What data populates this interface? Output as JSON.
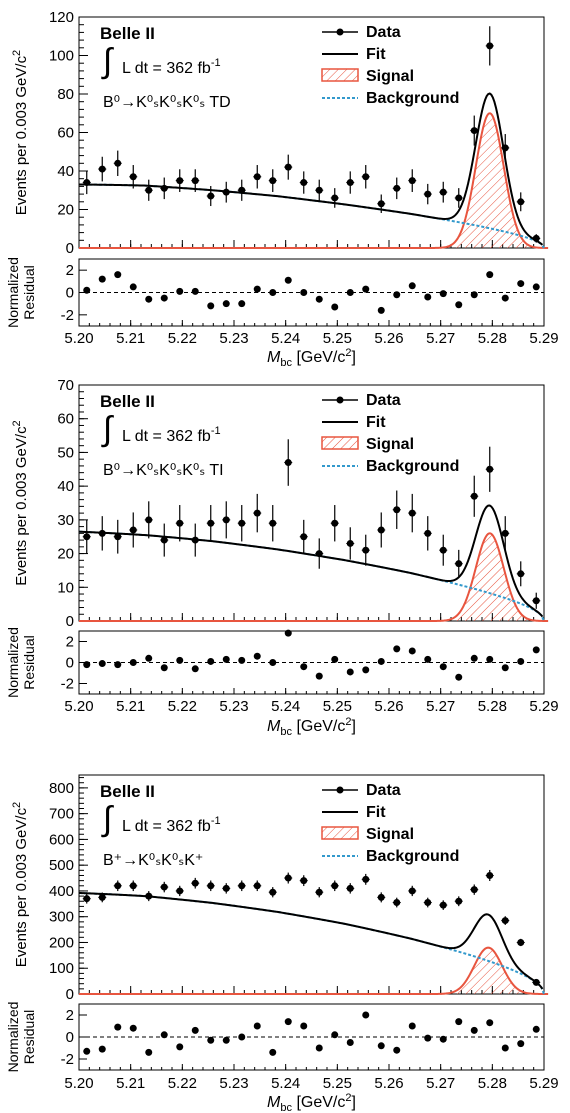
{
  "style": {
    "data": "#000000",
    "fit": "#000000",
    "signal": "#e8553f",
    "background": "#3399cc"
  },
  "legend": {
    "data": "Data",
    "fit": "Fit",
    "signal": "Signal",
    "background": "Background"
  },
  "experiment": "Belle II",
  "lumi_text": "L dt = 362 fb",
  "lumi_sup": "-1",
  "y_label": "Events per 0.003 GeV/c",
  "y_label_sup": "2",
  "res_label_1": "Normalized",
  "res_label_2": "Residual",
  "x_label_main": "M",
  "x_label_sub": "bc",
  "x_label_unit": " [GeV/c",
  "x_label_unit_sup": "2",
  "x_label_close": "]",
  "chart_data": [
    {
      "type": "scatter",
      "channel": "B⁰→K⁰ₛK⁰ₛK⁰ₛ TD",
      "xlim": [
        5.2,
        5.29
      ],
      "ylim": [
        0,
        120
      ],
      "yticks": [
        0,
        20,
        40,
        60,
        80,
        100,
        120
      ],
      "xticks": [
        5.2,
        5.21,
        5.22,
        5.23,
        5.24,
        5.25,
        5.26,
        5.27,
        5.28,
        5.29
      ],
      "data_x": [
        5.2015,
        5.2045,
        5.2075,
        5.2105,
        5.2135,
        5.2165,
        5.2195,
        5.2225,
        5.2255,
        5.2285,
        5.2315,
        5.2345,
        5.2375,
        5.2405,
        5.2435,
        5.2465,
        5.2495,
        5.2525,
        5.2555,
        5.2585,
        5.2615,
        5.2645,
        5.2675,
        5.2705,
        5.2735,
        5.2765,
        5.2795,
        5.2825,
        5.2855,
        5.2885
      ],
      "data_y": [
        34,
        41,
        44,
        37,
        30,
        31,
        35,
        35,
        27,
        29,
        30,
        37,
        35,
        42,
        34,
        30,
        26,
        34,
        37,
        23,
        31,
        35,
        28,
        29,
        26,
        61,
        105,
        52,
        24,
        5
      ],
      "data_err": [
        6,
        6.4,
        6.6,
        6.1,
        5.5,
        5.6,
        5.9,
        5.9,
        5.2,
        5.4,
        5.5,
        6.1,
        5.9,
        6.5,
        5.8,
        5.5,
        5.1,
        5.8,
        6.1,
        4.8,
        5.6,
        5.9,
        5.3,
        5.4,
        5.1,
        7.8,
        10.2,
        7.2,
        4.9,
        2.2
      ],
      "bkg_poly": [
        33,
        35,
        35.5,
        35.5,
        34.5,
        33,
        30.5,
        27
      ],
      "signal_peak": 70,
      "mean": 5.2795,
      "sigma": 0.0027,
      "residual_ylim": [
        -3,
        3
      ],
      "residual_yticks": [
        -2,
        0,
        2
      ],
      "residuals": [
        0.2,
        1.2,
        1.6,
        0.5,
        -0.6,
        -0.5,
        0.1,
        0.1,
        -1.2,
        -1,
        -1,
        0.3,
        0,
        1.1,
        0,
        -0.6,
        -1.3,
        0,
        0.3,
        -1.6,
        -0.2,
        0.6,
        -0.4,
        -0.1,
        -1.1,
        -0.2,
        1.6,
        -0.5,
        0.8,
        0.5
      ]
    },
    {
      "type": "scatter",
      "channel": "B⁰→K⁰ₛK⁰ₛK⁰ₛ TI",
      "xlim": [
        5.2,
        5.29
      ],
      "ylim": [
        0,
        70
      ],
      "yticks": [
        0,
        10,
        20,
        30,
        40,
        50,
        60,
        70
      ],
      "xticks": [
        5.2,
        5.21,
        5.22,
        5.23,
        5.24,
        5.25,
        5.26,
        5.27,
        5.28,
        5.29
      ],
      "data_x": [
        5.2015,
        5.2045,
        5.2075,
        5.2105,
        5.2135,
        5.2165,
        5.2195,
        5.2225,
        5.2255,
        5.2285,
        5.2315,
        5.2345,
        5.2375,
        5.2405,
        5.2435,
        5.2465,
        5.2495,
        5.2525,
        5.2555,
        5.2585,
        5.2615,
        5.2645,
        5.2675,
        5.2705,
        5.2735,
        5.2765,
        5.2795,
        5.2825,
        5.2855,
        5.2885
      ],
      "data_y": [
        25,
        26,
        25,
        27,
        30,
        24,
        29,
        24,
        29,
        30,
        29,
        32,
        29,
        47,
        25,
        20,
        29,
        23,
        21,
        27,
        33,
        32,
        26,
        21,
        17,
        37,
        45,
        26,
        14,
        6
      ],
      "data_err": [
        5,
        5.1,
        5,
        5.2,
        5.5,
        4.9,
        5.4,
        4.9,
        5.4,
        5.5,
        5.4,
        5.7,
        5.4,
        6.9,
        5,
        4.5,
        5.4,
        4.8,
        4.6,
        5.2,
        5.7,
        5.7,
        5.1,
        4.6,
        4.1,
        6.1,
        6.7,
        5.1,
        3.7,
        2.4
      ],
      "bkg_poly": [
        26.5,
        27.5,
        28,
        28,
        27.5,
        26.5,
        24.5,
        22
      ],
      "signal_peak": 26,
      "mean": 5.2795,
      "sigma": 0.0027,
      "residual_ylim": [
        -3,
        3
      ],
      "residual_yticks": [
        -2,
        0,
        2
      ],
      "residuals": [
        -0.2,
        -0.1,
        -0.2,
        0,
        0.4,
        -0.5,
        0.2,
        -0.6,
        0.1,
        0.3,
        0.2,
        0.6,
        0,
        2.8,
        -0.4,
        -1.3,
        0.3,
        -0.9,
        -0.7,
        0.1,
        1.3,
        1.1,
        0.3,
        -0.4,
        -1.4,
        0.4,
        0.3,
        -0.5,
        0.1,
        1.2
      ]
    },
    {
      "type": "scatter",
      "channel": "B⁺→K⁰ₛK⁰ₛK⁺",
      "xlim": [
        5.2,
        5.29
      ],
      "ylim": [
        0,
        850
      ],
      "yticks": [
        0,
        100,
        200,
        300,
        400,
        500,
        600,
        700,
        800
      ],
      "xticks": [
        5.2,
        5.21,
        5.22,
        5.23,
        5.24,
        5.25,
        5.26,
        5.27,
        5.28,
        5.29
      ],
      "data_x": [
        5.2015,
        5.2045,
        5.2075,
        5.2105,
        5.2135,
        5.2165,
        5.2195,
        5.2225,
        5.2255,
        5.2285,
        5.2315,
        5.2345,
        5.2375,
        5.2405,
        5.2435,
        5.2465,
        5.2495,
        5.2525,
        5.2555,
        5.2585,
        5.2615,
        5.2645,
        5.2675,
        5.2705,
        5.2735,
        5.2765,
        5.2795,
        5.2825,
        5.2855,
        5.2885
      ],
      "data_y": [
        370,
        375,
        420,
        420,
        380,
        415,
        400,
        430,
        420,
        410,
        420,
        420,
        395,
        450,
        440,
        395,
        420,
        410,
        445,
        375,
        355,
        400,
        355,
        345,
        360,
        405,
        460,
        285,
        200,
        45
      ],
      "data_err": [
        19,
        19,
        20.5,
        20.5,
        19.5,
        20.4,
        20,
        20.7,
        20.5,
        20.2,
        20.5,
        20.5,
        19.9,
        21.2,
        21,
        19.9,
        20.5,
        20.2,
        21.1,
        19.4,
        18.8,
        20,
        18.8,
        18.6,
        19,
        20.1,
        21.4,
        16.9,
        14.1,
        6.7
      ],
      "bkg_poly": [
        392,
        410,
        418,
        420,
        415,
        400,
        375,
        340
      ],
      "signal_peak": 180,
      "mean": 5.2792,
      "sigma": 0.0027,
      "residual_ylim": [
        -3,
        3
      ],
      "residual_yticks": [
        -2,
        0,
        2
      ],
      "residuals": [
        -1.3,
        -1.1,
        0.9,
        0.8,
        -1.4,
        0.2,
        -0.9,
        0.6,
        -0.3,
        -0.3,
        0,
        1,
        -1.4,
        1.4,
        1,
        -1,
        0.2,
        -0.5,
        2,
        -0.8,
        -1.2,
        1,
        -0.1,
        -0.2,
        1.4,
        0.6,
        1.3,
        -1,
        -0.6,
        0.7
      ]
    }
  ]
}
